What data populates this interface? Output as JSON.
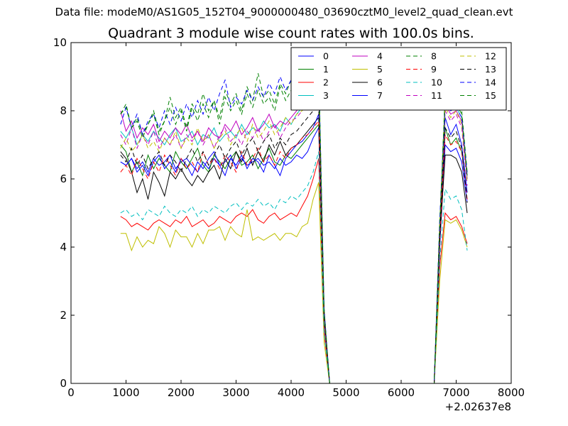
{
  "suptitle": "Data file: modeM0/AS1G05_152T04_9000000480_03690cztM0_level2_quad_clean.evt",
  "chart_data": {
    "type": "line",
    "title": "Quadrant 3 module wise count rates with 100.0s bins.",
    "xlabel": "",
    "ylabel": "",
    "x_offset_label": "+2.02637e8",
    "xlim": [
      0,
      8000
    ],
    "ylim": [
      0,
      10
    ],
    "xticks": [
      "0",
      "1000",
      "2000",
      "3000",
      "4000",
      "5000",
      "6000",
      "7000",
      "8000"
    ],
    "yticks": [
      "0",
      "2",
      "4",
      "6",
      "8",
      "10"
    ],
    "grid": false,
    "legend_position": "top-right",
    "legend_columns": 4,
    "x": [
      900,
      1000,
      1100,
      1200,
      1300,
      1400,
      1500,
      1600,
      1700,
      1800,
      1900,
      2000,
      2100,
      2200,
      2300,
      2400,
      2500,
      2600,
      2700,
      2800,
      2900,
      3000,
      3100,
      3200,
      3300,
      3400,
      3500,
      3600,
      3700,
      3800,
      3900,
      4000,
      4100,
      4200,
      4300,
      4400,
      4500,
      4600,
      4700,
      4800,
      4900,
      5000,
      5100,
      5200,
      5300,
      5400,
      5500,
      5600,
      5700,
      5800,
      5900,
      6000,
      6100,
      6200,
      6300,
      6400,
      6500,
      6600,
      6700,
      6800,
      6900,
      7000,
      7100,
      7200
    ],
    "series": [
      {
        "name": "0",
        "color": "#0000ff",
        "style": "solid",
        "values": [
          6.5,
          6.4,
          6.6,
          6.3,
          6.5,
          6.2,
          6.6,
          6.4,
          6.5,
          6.7,
          6.3,
          6.5,
          6.6,
          6.4,
          6.2,
          6.5,
          6.3,
          6.6,
          6.4,
          6.5,
          6.7,
          6.3,
          6.6,
          6.4,
          6.5,
          6.6,
          6.4,
          6.5,
          6.3,
          6.6,
          6.4,
          6.5,
          6.7,
          6.6,
          6.8,
          7.2,
          7.5,
          1.8,
          0,
          0,
          0,
          0,
          0,
          0,
          0,
          0,
          0,
          0,
          0,
          0,
          0,
          0,
          0,
          0,
          0,
          0,
          0,
          0,
          4.0,
          7.0,
          6.8,
          6.9,
          6.5,
          5.3
        ]
      },
      {
        "name": "1",
        "color": "#008000",
        "style": "solid",
        "values": [
          7.0,
          6.8,
          6.2,
          6.5,
          6.1,
          6.7,
          6.3,
          6.6,
          6.4,
          6.2,
          6.8,
          6.5,
          6.3,
          6.6,
          6.9,
          6.4,
          6.2,
          6.7,
          6.5,
          6.3,
          6.6,
          6.8,
          6.4,
          6.5,
          6.7,
          6.3,
          6.6,
          6.9,
          6.5,
          6.4,
          6.7,
          6.6,
          6.8,
          7.0,
          7.2,
          7.4,
          7.6,
          1.9,
          0,
          0,
          0,
          0,
          0,
          0,
          0,
          0,
          0,
          0,
          0,
          0,
          0,
          0,
          0,
          0,
          0,
          0,
          0,
          0,
          4.3,
          7.5,
          7.0,
          7.2,
          6.8,
          5.6
        ]
      },
      {
        "name": "2",
        "color": "#ff0000",
        "style": "solid",
        "values": [
          4.9,
          4.8,
          4.6,
          4.7,
          4.6,
          4.5,
          4.7,
          4.8,
          4.7,
          4.6,
          4.8,
          4.7,
          4.9,
          4.6,
          4.7,
          4.8,
          4.6,
          4.7,
          4.9,
          4.8,
          4.7,
          4.9,
          5.0,
          4.9,
          5.1,
          4.8,
          4.7,
          4.9,
          5.0,
          4.8,
          4.9,
          5.0,
          4.9,
          5.2,
          5.5,
          6.0,
          6.6,
          1.5,
          0,
          0,
          0,
          0,
          0,
          0,
          0,
          0,
          0,
          0,
          0,
          0,
          0,
          0,
          0,
          0,
          0,
          0,
          0,
          0,
          3.4,
          5.0,
          4.8,
          4.9,
          4.6,
          4.1
        ]
      },
      {
        "name": "3",
        "color": "#00bfbf",
        "style": "solid",
        "values": [
          7.4,
          7.2,
          7.5,
          7.0,
          7.3,
          7.1,
          7.4,
          7.2,
          7.0,
          7.3,
          7.5,
          7.1,
          7.2,
          7.4,
          7.0,
          7.3,
          7.2,
          7.5,
          7.1,
          7.3,
          7.4,
          7.2,
          7.6,
          7.3,
          7.5,
          7.4,
          7.7,
          7.5,
          7.6,
          7.4,
          7.8,
          7.6,
          7.9,
          8.1,
          8.3,
          8.6,
          8.8,
          2.0,
          0,
          0,
          0,
          0,
          0,
          0,
          0,
          0,
          0,
          0,
          0,
          0,
          0,
          0,
          0,
          0,
          0,
          0,
          0,
          0,
          4.6,
          8.3,
          8.0,
          8.1,
          7.8,
          6.0
        ]
      },
      {
        "name": "4",
        "color": "#bf00bf",
        "style": "solid",
        "values": [
          8.0,
          7.4,
          7.7,
          7.2,
          7.5,
          7.3,
          7.6,
          7.1,
          7.4,
          7.2,
          7.5,
          7.3,
          7.6,
          7.2,
          7.4,
          7.1,
          7.5,
          7.3,
          7.2,
          7.6,
          7.4,
          7.7,
          7.3,
          7.5,
          7.8,
          7.4,
          7.6,
          7.9,
          7.5,
          7.7,
          7.6,
          7.8,
          8.0,
          8.2,
          8.4,
          8.6,
          8.7,
          2.0,
          0,
          0,
          0,
          0,
          0,
          0,
          0,
          0,
          0,
          0,
          0,
          0,
          0,
          0,
          0,
          0,
          0,
          0,
          0,
          0,
          4.5,
          8.2,
          7.9,
          8.0,
          7.7,
          6.0
        ]
      },
      {
        "name": "5",
        "color": "#bfbf00",
        "style": "solid",
        "values": [
          4.4,
          4.4,
          3.9,
          4.3,
          4.0,
          4.2,
          4.1,
          4.6,
          4.4,
          4.0,
          4.5,
          4.3,
          4.3,
          4.0,
          4.4,
          4.1,
          4.5,
          4.5,
          4.6,
          4.2,
          4.6,
          4.4,
          4.3,
          5.1,
          4.2,
          4.3,
          4.2,
          4.3,
          4.4,
          4.2,
          4.4,
          4.4,
          4.3,
          4.6,
          4.7,
          5.4,
          5.9,
          1.2,
          0,
          0,
          0,
          0,
          0,
          0,
          0,
          0,
          0,
          0,
          0,
          0,
          0,
          0,
          0,
          0,
          0,
          0,
          0,
          0,
          3.0,
          4.8,
          4.7,
          4.8,
          4.5,
          4.0
        ]
      },
      {
        "name": "6",
        "color": "#000000",
        "style": "solid",
        "values": [
          6.8,
          6.6,
          6.2,
          5.6,
          6.0,
          5.4,
          6.2,
          5.9,
          5.5,
          6.2,
          6.0,
          6.3,
          6.0,
          5.8,
          6.1,
          5.9,
          6.2,
          6.4,
          6.0,
          6.6,
          6.3,
          6.8,
          6.5,
          6.9,
          6.4,
          6.8,
          6.5,
          7.0,
          6.7,
          7.1,
          6.7,
          6.9,
          7.0,
          7.2,
          7.4,
          7.6,
          7.8,
          1.9,
          0,
          0,
          0,
          0,
          0,
          0,
          0,
          0,
          0,
          0,
          0,
          0,
          0,
          0,
          0,
          0,
          0,
          0,
          0,
          0,
          4.2,
          6.7,
          6.7,
          6.6,
          6.2,
          5.0
        ]
      },
      {
        "name": "7",
        "color": "#0000ff",
        "style": "solid",
        "values": [
          6.5,
          6.4,
          6.6,
          6.2,
          6.4,
          6.1,
          6.5,
          6.7,
          6.3,
          6.5,
          6.2,
          6.6,
          6.4,
          6.1,
          6.5,
          6.3,
          6.6,
          6.8,
          6.4,
          6.1,
          6.6,
          6.4,
          6.7,
          6.3,
          6.6,
          6.5,
          6.2,
          6.7,
          6.4,
          6.1,
          6.6,
          6.8,
          7.0,
          7.1,
          7.3,
          7.5,
          7.9,
          1.9,
          0,
          0,
          0,
          0,
          0,
          0,
          0,
          0,
          0,
          0,
          0,
          0,
          0,
          0,
          0,
          0,
          0,
          0,
          0,
          0,
          4.4,
          7.8,
          7.3,
          7.6,
          7.0,
          5.6
        ]
      },
      {
        "name": "8",
        "color": "#008000",
        "style": "dashed",
        "values": [
          7.9,
          8.1,
          7.5,
          7.8,
          7.3,
          7.6,
          8.0,
          7.4,
          7.7,
          8.4,
          7.8,
          8.1,
          7.5,
          8.2,
          7.9,
          8.5,
          8.0,
          8.3,
          7.8,
          8.6,
          8.2,
          8.5,
          8.0,
          8.7,
          8.3,
          9.1,
          8.4,
          8.6,
          8.2,
          8.8,
          8.5,
          8.9,
          8.6,
          9.0,
          9.1,
          9.3,
          9.4,
          2.2,
          0,
          0,
          0,
          0,
          0,
          0,
          0,
          0,
          0,
          0,
          0,
          0,
          0,
          0,
          0,
          0,
          0,
          0,
          0,
          0,
          4.7,
          8.5,
          8.1,
          8.3,
          8.0,
          6.2
        ]
      },
      {
        "name": "9",
        "color": "#ff0000",
        "style": "dashed",
        "values": [
          6.2,
          6.4,
          6.1,
          6.6,
          6.3,
          6.0,
          6.5,
          6.2,
          6.7,
          6.4,
          6.1,
          6.6,
          6.3,
          6.5,
          6.2,
          6.8,
          6.4,
          6.6,
          6.3,
          6.7,
          6.5,
          6.2,
          6.8,
          6.4,
          6.6,
          6.9,
          6.5,
          6.7,
          6.4,
          6.8,
          6.6,
          6.9,
          7.0,
          7.2,
          7.3,
          7.5,
          7.7,
          1.8,
          0,
          0,
          0,
          0,
          0,
          0,
          0,
          0,
          0,
          0,
          0,
          0,
          0,
          0,
          0,
          0,
          0,
          0,
          0,
          0,
          4.2,
          7.3,
          7.0,
          7.1,
          6.8,
          5.4
        ]
      },
      {
        "name": "10",
        "color": "#00bfbf",
        "style": "dashed",
        "values": [
          5.0,
          5.1,
          4.9,
          5.0,
          4.8,
          5.1,
          5.0,
          4.9,
          5.2,
          5.0,
          4.9,
          5.1,
          5.0,
          5.2,
          4.9,
          5.1,
          5.0,
          5.2,
          5.1,
          5.0,
          5.2,
          5.3,
          5.1,
          5.3,
          5.2,
          5.4,
          5.2,
          5.3,
          5.1,
          5.4,
          5.3,
          5.5,
          5.4,
          5.6,
          5.8,
          6.2,
          6.8,
          1.5,
          0,
          0,
          0,
          0,
          0,
          0,
          0,
          0,
          0,
          0,
          0,
          0,
          0,
          0,
          0,
          0,
          0,
          0,
          0,
          0,
          3.6,
          5.7,
          5.4,
          5.5,
          5.1,
          3.9
        ]
      },
      {
        "name": "11",
        "color": "#bf00bf",
        "style": "dashed",
        "values": [
          7.3,
          7.0,
          7.5,
          6.9,
          7.3,
          7.0,
          7.4,
          6.9,
          7.2,
          7.0,
          7.3,
          6.9,
          7.3,
          7.1,
          7.4,
          7.0,
          7.3,
          6.9,
          7.3,
          7.5,
          7.1,
          7.3,
          7.0,
          7.4,
          7.2,
          7.5,
          7.1,
          7.4,
          7.6,
          7.2,
          7.5,
          7.7,
          7.8,
          8.0,
          8.2,
          8.4,
          8.6,
          2.0,
          0,
          0,
          0,
          0,
          0,
          0,
          0,
          0,
          0,
          0,
          0,
          0,
          0,
          0,
          0,
          0,
          0,
          0,
          0,
          0,
          4.5,
          8.0,
          7.7,
          7.9,
          7.5,
          5.8
        ]
      },
      {
        "name": "12",
        "color": "#bfbf00",
        "style": "dashed",
        "values": [
          6.9,
          7.2,
          6.8,
          7.0,
          7.3,
          6.9,
          7.1,
          6.8,
          7.2,
          7.0,
          7.4,
          6.9,
          7.2,
          7.0,
          7.5,
          7.1,
          7.3,
          6.9,
          7.2,
          7.4,
          7.0,
          7.3,
          7.5,
          7.1,
          7.6,
          7.2,
          7.4,
          7.7,
          7.3,
          7.5,
          7.8,
          7.6,
          7.9,
          8.0,
          8.2,
          8.4,
          8.7,
          2.1,
          0,
          0,
          0,
          0,
          0,
          0,
          0,
          0,
          0,
          0,
          0,
          0,
          0,
          0,
          0,
          0,
          0,
          0,
          0,
          0,
          4.6,
          8.1,
          7.8,
          8.0,
          7.6,
          5.9
        ]
      },
      {
        "name": "13",
        "color": "#000000",
        "style": "dashed",
        "values": [
          6.7,
          6.5,
          6.9,
          6.4,
          6.7,
          6.3,
          6.6,
          6.8,
          6.4,
          6.7,
          6.5,
          6.2,
          6.6,
          6.9,
          6.5,
          6.8,
          6.4,
          6.7,
          7.0,
          6.6,
          6.9,
          7.1,
          6.7,
          7.0,
          7.2,
          6.8,
          7.1,
          7.3,
          6.9,
          7.2,
          7.0,
          7.3,
          7.4,
          7.6,
          7.8,
          8.0,
          8.2,
          2.0,
          0,
          0,
          0,
          0,
          0,
          0,
          0,
          0,
          0,
          0,
          0,
          0,
          0,
          0,
          0,
          0,
          0,
          0,
          0,
          0,
          4.3,
          7.5,
          7.2,
          7.4,
          6.9,
          5.3
        ]
      },
      {
        "name": "14",
        "color": "#0000ff",
        "style": "dashed",
        "values": [
          7.6,
          8.1,
          7.5,
          7.9,
          7.3,
          7.7,
          7.9,
          7.5,
          8.0,
          7.6,
          8.1,
          7.7,
          8.2,
          7.8,
          8.3,
          7.9,
          8.4,
          8.0,
          8.5,
          8.9,
          8.1,
          8.4,
          8.2,
          8.6,
          8.3,
          8.7,
          8.4,
          8.8,
          8.5,
          9.0,
          8.6,
          8.9,
          8.7,
          9.1,
          9.2,
          9.3,
          9.4,
          2.2,
          0,
          0,
          0,
          0,
          0,
          0,
          0,
          0,
          0,
          0,
          0,
          0,
          0,
          0,
          0,
          0,
          0,
          0,
          0,
          0,
          4.8,
          8.2,
          8.0,
          8.1,
          7.8,
          6.1
        ]
      },
      {
        "name": "15",
        "color": "#008000",
        "style": "dashed",
        "values": [
          7.9,
          8.2,
          7.5,
          7.7,
          7.2,
          7.6,
          7.9,
          7.3,
          7.7,
          8.1,
          7.6,
          8.0,
          7.4,
          8.1,
          7.7,
          8.2,
          7.8,
          8.3,
          7.6,
          8.4,
          8.0,
          8.3,
          7.9,
          8.5,
          8.1,
          8.6,
          8.2,
          8.4,
          8.0,
          8.7,
          8.3,
          8.6,
          8.4,
          8.8,
          8.9,
          9.1,
          9.2,
          2.1,
          0,
          0,
          0,
          0,
          0,
          0,
          0,
          0,
          0,
          0,
          0,
          0,
          0,
          0,
          0,
          0,
          0,
          0,
          0,
          0,
          4.6,
          8.4,
          8.0,
          8.2,
          7.9,
          6.1
        ]
      }
    ]
  }
}
